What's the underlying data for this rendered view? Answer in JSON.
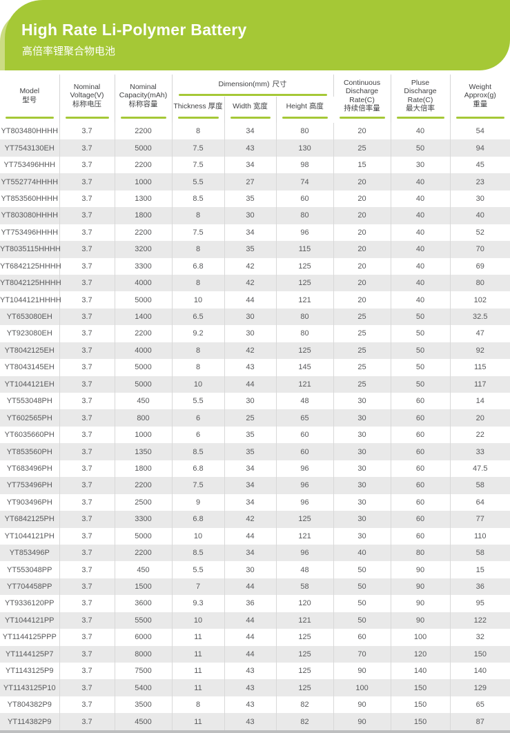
{
  "banner": {
    "title": "High Rate Li-Polymer Battery",
    "subtitle": "高倍率锂聚合物电池"
  },
  "colors": {
    "banner_green": "#a5c836",
    "banner_light_green": "#ccdc84",
    "underline_green": "#a5c836",
    "row_stripe_gray": "#e9e9e9",
    "grid_line_gray": "#d8d8d8",
    "header_text": "#404143",
    "body_text": "#57585a",
    "bottom_bar_gray": "#bdbebf"
  },
  "table": {
    "headers": {
      "model": {
        "en": "Model",
        "zh": "型号"
      },
      "voltage": {
        "en": "Nominal\nVoltage(V)",
        "zh": "标称电压"
      },
      "capacity": {
        "en": "Nominal\nCapacity(mAh)",
        "zh": "标称容量"
      },
      "dimension": {
        "en": "Dimension(mm)",
        "zh": "尺寸"
      },
      "thickness": {
        "en": "Thickness",
        "zh": "厚度"
      },
      "width": {
        "en": "Width",
        "zh": "宽度"
      },
      "height": {
        "en": "Height",
        "zh": "高度"
      },
      "continuous_discharge": {
        "en": "Continuous\nDischarge\nRate(C)",
        "zh": "持续倍率量"
      },
      "pluse_discharge": {
        "en": "Pluse\nDischarge\nRate(C)",
        "zh": "最大倍率"
      },
      "weight": {
        "en": "Weight\nApprox(g)",
        "zh": "重量"
      }
    },
    "rows": [
      [
        "YT803480HHHH",
        "3.7",
        "2200",
        "8",
        "34",
        "80",
        "20",
        "40",
        "54"
      ],
      [
        "YT7543130EH",
        "3.7",
        "5000",
        "7.5",
        "43",
        "130",
        "25",
        "50",
        "94"
      ],
      [
        "YT753496HHH",
        "3.7",
        "2200",
        "7.5",
        "34",
        "98",
        "15",
        "30",
        "45"
      ],
      [
        "YT552774HHHH",
        "3.7",
        "1000",
        "5.5",
        "27",
        "74",
        "20",
        "40",
        "23"
      ],
      [
        "YT853560HHHH",
        "3.7",
        "1300",
        "8.5",
        "35",
        "60",
        "20",
        "40",
        "30"
      ],
      [
        "YT803080HHHH",
        "3.7",
        "1800",
        "8",
        "30",
        "80",
        "20",
        "40",
        "40"
      ],
      [
        "YT753496HHHH",
        "3.7",
        "2200",
        "7.5",
        "34",
        "96",
        "20",
        "40",
        "52"
      ],
      [
        "YT8035115HHHH",
        "3.7",
        "3200",
        "8",
        "35",
        "115",
        "20",
        "40",
        "70"
      ],
      [
        "YT6842125HHHH",
        "3.7",
        "3300",
        "6.8",
        "42",
        "125",
        "20",
        "40",
        "69"
      ],
      [
        "YT8042125HHHH",
        "3.7",
        "4000",
        "8",
        "42",
        "125",
        "20",
        "40",
        "80"
      ],
      [
        "YT1044121HHHH",
        "3.7",
        "5000",
        "10",
        "44",
        "121",
        "20",
        "40",
        "102"
      ],
      [
        "YT653080EH",
        "3.7",
        "1400",
        "6.5",
        "30",
        "80",
        "25",
        "50",
        "32.5"
      ],
      [
        "YT923080EH",
        "3.7",
        "2200",
        "9.2",
        "30",
        "80",
        "25",
        "50",
        "47"
      ],
      [
        "YT8042125EH",
        "3.7",
        "4000",
        "8",
        "42",
        "125",
        "25",
        "50",
        "92"
      ],
      [
        "YT8043145EH",
        "3.7",
        "5000",
        "8",
        "43",
        "145",
        "25",
        "50",
        "115"
      ],
      [
        "YT1044121EH",
        "3.7",
        "5000",
        "10",
        "44",
        "121",
        "25",
        "50",
        "117"
      ],
      [
        "YT553048PH",
        "3.7",
        "450",
        "5.5",
        "30",
        "48",
        "30",
        "60",
        "14"
      ],
      [
        "YT602565PH",
        "3.7",
        "800",
        "6",
        "25",
        "65",
        "30",
        "60",
        "20"
      ],
      [
        "YT6035660PH",
        "3.7",
        "1000",
        "6",
        "35",
        "60",
        "30",
        "60",
        "22"
      ],
      [
        "YT853560PH",
        "3.7",
        "1350",
        "8.5",
        "35",
        "60",
        "30",
        "60",
        "33"
      ],
      [
        "YT683496PH",
        "3.7",
        "1800",
        "6.8",
        "34",
        "96",
        "30",
        "60",
        "47.5"
      ],
      [
        "YT753496PH",
        "3.7",
        "2200",
        "7.5",
        "34",
        "96",
        "30",
        "60",
        "58"
      ],
      [
        "YT903496PH",
        "3.7",
        "2500",
        "9",
        "34",
        "96",
        "30",
        "60",
        "64"
      ],
      [
        "YT6842125PH",
        "3.7",
        "3300",
        "6.8",
        "42",
        "125",
        "30",
        "60",
        "77"
      ],
      [
        "YT1044121PH",
        "3.7",
        "5000",
        "10",
        "44",
        "121",
        "30",
        "60",
        "110"
      ],
      [
        "YT853496P",
        "3.7",
        "2200",
        "8.5",
        "34",
        "96",
        "40",
        "80",
        "58"
      ],
      [
        "YT553048PP",
        "3.7",
        "450",
        "5.5",
        "30",
        "48",
        "50",
        "90",
        "15"
      ],
      [
        "YT704458PP",
        "3.7",
        "1500",
        "7",
        "44",
        "58",
        "50",
        "90",
        "36"
      ],
      [
        "YT9336120PP",
        "3.7",
        "3600",
        "9.3",
        "36",
        "120",
        "50",
        "90",
        "95"
      ],
      [
        "YT1044121PP",
        "3.7",
        "5500",
        "10",
        "44",
        "121",
        "50",
        "90",
        "122"
      ],
      [
        "YT1144125PPP",
        "3.7",
        "6000",
        "11",
        "44",
        "125",
        "60",
        "100",
        "32"
      ],
      [
        "YT1144125P7",
        "3.7",
        "8000",
        "11",
        "44",
        "125",
        "70",
        "120",
        "150"
      ],
      [
        "YT1143125P9",
        "3.7",
        "7500",
        "11",
        "43",
        "125",
        "90",
        "140",
        "140"
      ],
      [
        "YT1143125P10",
        "3.7",
        "5400",
        "11",
        "43",
        "125",
        "100",
        "150",
        "129"
      ],
      [
        "YT804382P9",
        "3.7",
        "3500",
        "8",
        "43",
        "82",
        "90",
        "150",
        "65"
      ],
      [
        "YT114382P9",
        "3.7",
        "4500",
        "11",
        "43",
        "82",
        "90",
        "150",
        "87"
      ]
    ]
  }
}
